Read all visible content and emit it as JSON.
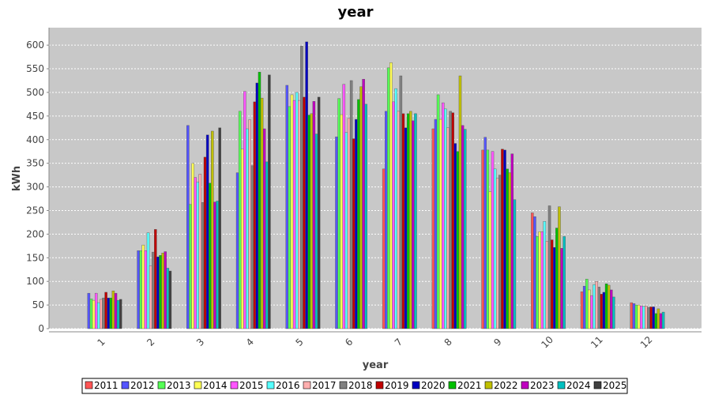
{
  "chart_data": {
    "type": "bar",
    "title": "year",
    "x_label": "year",
    "y_label": "kWh",
    "categories": [
      "1",
      "2",
      "3",
      "4",
      "5",
      "6",
      "7",
      "8",
      "9",
      "10",
      "11",
      "12"
    ],
    "ylim": [
      0,
      637
    ],
    "yticks": [
      0,
      50,
      100,
      150,
      200,
      250,
      300,
      350,
      400,
      450,
      500,
      550,
      600
    ],
    "grid": true,
    "series": [
      {
        "name": "2011",
        "color": "#ff5555",
        "values": [
          null,
          null,
          null,
          null,
          null,
          null,
          338,
          423,
          378,
          245,
          78,
          55
        ]
      },
      {
        "name": "2012",
        "color": "#5555ff",
        "values": [
          75,
          165,
          430,
          330,
          515,
          406,
          460,
          443,
          405,
          237,
          90,
          53
        ]
      },
      {
        "name": "2013",
        "color": "#55ff55",
        "values": [
          63,
          165,
          263,
          460,
          470,
          487,
          552,
          495,
          378,
          195,
          105,
          50
        ]
      },
      {
        "name": "2014",
        "color": "#ffff55",
        "values": [
          60,
          177,
          350,
          380,
          495,
          453,
          563,
          443,
          290,
          205,
          82,
          50
        ]
      },
      {
        "name": "2015",
        "color": "#ff55ff",
        "values": [
          75,
          165,
          320,
          502,
          483,
          517,
          480,
          478,
          375,
          205,
          70,
          48
        ]
      },
      {
        "name": "2016",
        "color": "#55ffff",
        "values": [
          55,
          203,
          310,
          423,
          500,
          415,
          508,
          465,
          338,
          227,
          93,
          47
        ]
      },
      {
        "name": "2017",
        "color": "#ffafaf",
        "values": [
          62,
          133,
          327,
          442,
          483,
          445,
          460,
          425,
          318,
          185,
          100,
          48
        ]
      },
      {
        "name": "2018",
        "color": "#808080",
        "values": [
          65,
          162,
          267,
          345,
          598,
          525,
          535,
          460,
          325,
          260,
          88,
          45
        ]
      },
      {
        "name": "2019",
        "color": "#c00000",
        "values": [
          77,
          210,
          363,
          480,
          490,
          402,
          455,
          457,
          380,
          188,
          73,
          46
        ]
      },
      {
        "name": "2020",
        "color": "#0000c0",
        "values": [
          65,
          152,
          410,
          520,
          607,
          443,
          425,
          392,
          378,
          172,
          77,
          46
        ]
      },
      {
        "name": "2021",
        "color": "#00c000",
        "values": [
          65,
          155,
          308,
          543,
          452,
          485,
          455,
          375,
          338,
          213,
          95,
          32
        ]
      },
      {
        "name": "2022",
        "color": "#c0c000",
        "values": [
          80,
          160,
          418,
          488,
          455,
          512,
          460,
          535,
          330,
          258,
          92,
          42
        ]
      },
      {
        "name": "2023",
        "color": "#c000c0",
        "values": [
          75,
          163,
          268,
          423,
          481,
          528,
          440,
          430,
          370,
          170,
          82,
          32
        ]
      },
      {
        "name": "2024",
        "color": "#00c0c0",
        "values": [
          60,
          128,
          270,
          353,
          412,
          475,
          455,
          422,
          273,
          195,
          67,
          35
        ]
      },
      {
        "name": "2025",
        "color": "#404040",
        "values": [
          62,
          122,
          425,
          537,
          490,
          null,
          null,
          null,
          null,
          null,
          null,
          null
        ]
      }
    ]
  }
}
